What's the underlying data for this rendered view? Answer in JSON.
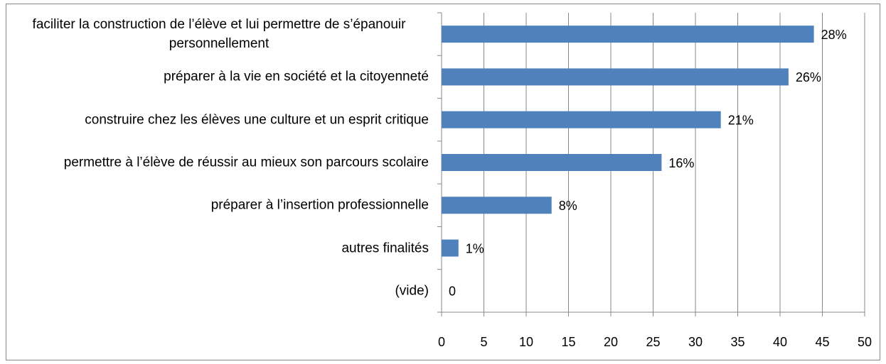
{
  "chart_data": {
    "type": "bar",
    "orientation": "horizontal",
    "categories": [
      "faciliter la construction de l’élève et lui permettre de s’épanouir personnellement",
      "préparer à la vie en société et la citoyenneté",
      "construire chez les élèves une culture et un esprit critique",
      "permettre à l’élève de réussir au mieux son parcours scolaire",
      "préparer à l’insertion professionnelle",
      "autres finalités",
      "(vide)"
    ],
    "values": [
      44,
      41,
      33,
      26,
      13,
      2,
      0
    ],
    "value_labels": [
      "28%",
      "26%",
      "21%",
      "16%",
      "8%",
      "1%",
      "0"
    ],
    "color": "#4f81bd",
    "xlim": [
      0,
      50
    ],
    "xticks": [
      0,
      5,
      10,
      15,
      20,
      25,
      30,
      35,
      40,
      45,
      50
    ],
    "grid": true
  }
}
